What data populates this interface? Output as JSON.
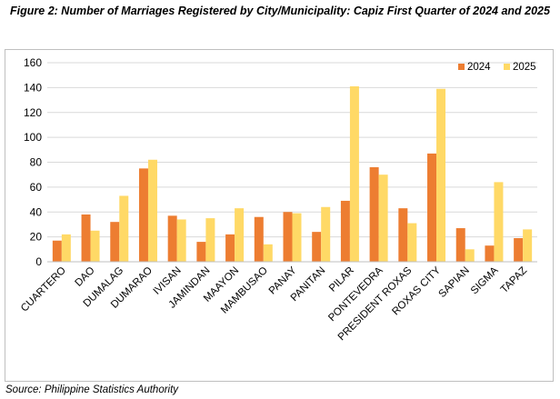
{
  "figure": {
    "title": "Figure 2: Number of Marriages Registered by City/Municipality: Capiz First Quarter of 2024 and 2025",
    "source": "Source: Philippine Statistics Authority"
  },
  "colors": {
    "s2024": "#ed7d31",
    "s2025": "#ffd966",
    "grid": "#d9d9d9",
    "axis": "#bfbfbf"
  },
  "chart_data": {
    "type": "bar",
    "title": "",
    "xlabel": "",
    "ylabel": "",
    "ylim": [
      0,
      160
    ],
    "yticks": [
      0,
      20,
      40,
      60,
      80,
      100,
      120,
      140,
      160
    ],
    "grid": true,
    "legend": "top-right",
    "categories": [
      "CUARTERO",
      "DAO",
      "DUMALAG",
      "DUMARAO",
      "IVISAN",
      "JAMINDAN",
      "MAAYON",
      "MAMBUSAO",
      "PANAY",
      "PANITAN",
      "PILAR",
      "PONTEVEDRA",
      "PRESIDENT ROXAS",
      "ROXAS CITY",
      "SAPIAN",
      "SIGMA",
      "TAPAZ"
    ],
    "series": [
      {
        "name": "2024",
        "values": [
          17,
          38,
          32,
          75,
          37,
          16,
          22,
          36,
          40,
          24,
          49,
          76,
          43,
          87,
          27,
          13,
          19
        ]
      },
      {
        "name": "2025",
        "values": [
          22,
          25,
          53,
          82,
          34,
          35,
          43,
          14,
          39,
          44,
          141,
          70,
          31,
          139,
          10,
          64,
          26
        ]
      }
    ]
  }
}
